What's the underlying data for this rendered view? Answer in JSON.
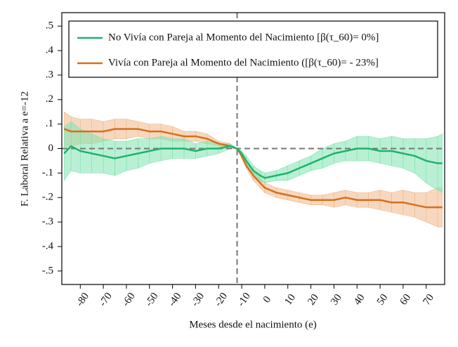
{
  "chart_data": {
    "type": "line-band",
    "ylabel": "F. Laboral Relativa a e=-12",
    "xlabel": "Meses desde el nacimiento (e)",
    "xlim": [
      -88,
      78
    ],
    "ylim": [
      -0.555,
      0.555
    ],
    "xticks": [
      -80,
      -70,
      -60,
      -50,
      -40,
      -30,
      -20,
      -10,
      0,
      10,
      20,
      30,
      40,
      50,
      60,
      70
    ],
    "yticks": [
      {
        "value": 0.5,
        "label": ".5"
      },
      {
        "value": 0.4,
        "label": ".4"
      },
      {
        "value": 0.3,
        "label": ".3"
      },
      {
        "value": 0.2,
        "label": ".2"
      },
      {
        "value": 0.1,
        "label": ".1"
      },
      0,
      {
        "value": -0.1,
        "label": "-.1"
      },
      {
        "value": -0.2,
        "label": "-.2"
      },
      {
        "value": -0.3,
        "label": "-.3"
      },
      {
        "value": -0.4,
        "label": "-.4"
      },
      {
        "value": -0.5,
        "label": "-.5"
      }
    ],
    "vline": -12,
    "hline": 0,
    "legend": "top",
    "x": [
      -87,
      -84,
      -80,
      -75,
      -70,
      -65,
      -60,
      -55,
      -50,
      -45,
      -40,
      -35,
      -30,
      -25,
      -20,
      -15,
      -12,
      -10,
      -8,
      -5,
      -2,
      0,
      5,
      10,
      15,
      20,
      25,
      30,
      35,
      40,
      45,
      50,
      55,
      60,
      65,
      70,
      75,
      77
    ],
    "series": [
      {
        "name": "Vivía con Pareja al Momento del Nacimiento ([β(τ_60)= - 23%]",
        "color": "#d66f1c",
        "band_color": "#f0b88a",
        "values": [
          0.08,
          0.07,
          0.07,
          0.07,
          0.07,
          0.08,
          0.08,
          0.08,
          0.07,
          0.07,
          0.06,
          0.05,
          0.05,
          0.04,
          0.02,
          0.01,
          0,
          -0.03,
          -0.07,
          -0.11,
          -0.14,
          -0.16,
          -0.18,
          -0.19,
          -0.2,
          -0.21,
          -0.21,
          -0.21,
          -0.2,
          -0.21,
          -0.21,
          -0.21,
          -0.22,
          -0.22,
          -0.23,
          -0.24,
          -0.24,
          -0.24
        ],
        "lower": [
          0.01,
          0.01,
          0.02,
          0.02,
          0.03,
          0.04,
          0.04,
          0.05,
          0.04,
          0.04,
          0.03,
          0.03,
          0.03,
          0.02,
          0.01,
          0,
          0,
          -0.04,
          -0.08,
          -0.13,
          -0.16,
          -0.18,
          -0.2,
          -0.21,
          -0.22,
          -0.23,
          -0.23,
          -0.24,
          -0.23,
          -0.24,
          -0.24,
          -0.25,
          -0.26,
          -0.27,
          -0.28,
          -0.3,
          -0.32,
          -0.32
        ],
        "upper": [
          0.15,
          0.13,
          0.12,
          0.12,
          0.11,
          0.12,
          0.12,
          0.11,
          0.1,
          0.1,
          0.09,
          0.07,
          0.07,
          0.06,
          0.03,
          0.02,
          0,
          -0.02,
          -0.06,
          -0.09,
          -0.12,
          -0.14,
          -0.16,
          -0.17,
          -0.18,
          -0.19,
          -0.19,
          -0.18,
          -0.17,
          -0.18,
          -0.18,
          -0.17,
          -0.18,
          -0.17,
          -0.18,
          -0.18,
          -0.16,
          -0.16
        ]
      },
      {
        "name": "No Vivía con Pareja al Momento del Nacimiento [β(τ_60)=  0%]",
        "color": "#1fb36a",
        "band_color": "#7fe3b0",
        "values": [
          -0.02,
          0.01,
          -0.01,
          -0.02,
          -0.03,
          -0.04,
          -0.03,
          -0.02,
          -0.01,
          0,
          0,
          0,
          -0.01,
          0,
          0,
          0.01,
          0,
          -0.02,
          -0.05,
          -0.09,
          -0.11,
          -0.12,
          -0.11,
          -0.1,
          -0.08,
          -0.06,
          -0.04,
          -0.02,
          -0.01,
          0,
          0,
          -0.01,
          -0.01,
          -0.02,
          -0.03,
          -0.05,
          -0.06,
          -0.06
        ],
        "lower": [
          -0.13,
          -0.09,
          -0.1,
          -0.1,
          -0.1,
          -0.11,
          -0.09,
          -0.08,
          -0.06,
          -0.05,
          -0.04,
          -0.04,
          -0.04,
          -0.03,
          -0.02,
          0,
          0,
          -0.03,
          -0.07,
          -0.11,
          -0.13,
          -0.14,
          -0.13,
          -0.13,
          -0.11,
          -0.09,
          -0.08,
          -0.06,
          -0.05,
          -0.05,
          -0.05,
          -0.06,
          -0.07,
          -0.08,
          -0.1,
          -0.14,
          -0.17,
          -0.18
        ],
        "upper": [
          0.09,
          0.11,
          0.08,
          0.06,
          0.04,
          0.03,
          0.03,
          0.04,
          0.04,
          0.05,
          0.04,
          0.04,
          0.02,
          0.03,
          0.02,
          0.02,
          0,
          -0.01,
          -0.03,
          -0.07,
          -0.09,
          -0.1,
          -0.09,
          -0.07,
          -0.05,
          -0.03,
          0,
          0.02,
          0.03,
          0.05,
          0.05,
          0.04,
          0.05,
          0.04,
          0.04,
          0.04,
          0.05,
          0.06
        ]
      }
    ]
  }
}
